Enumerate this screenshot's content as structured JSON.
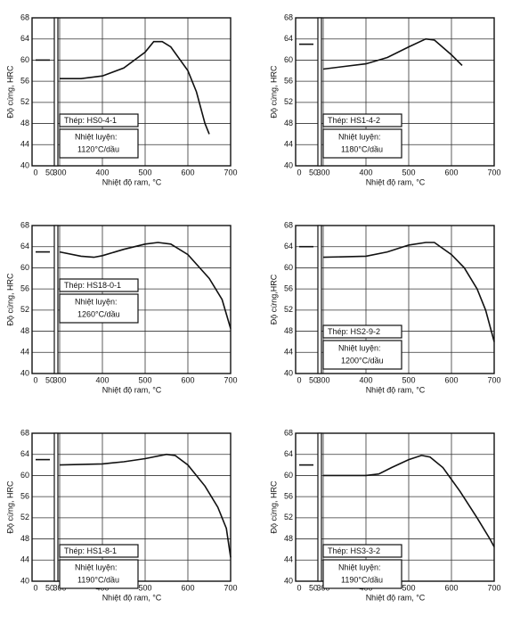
{
  "chart_data": [
    {
      "type": "line",
      "ylabel": "Độ cứng, HRC",
      "xlabel": "Nhiệt độ ram, °C",
      "annotations": [
        "Thép: HS0-4-1",
        "Nhiệt luyện:",
        "1120°C/dầu"
      ],
      "ylim": [
        40,
        68
      ],
      "yticks": [
        40,
        44,
        48,
        52,
        56,
        60,
        64,
        68
      ],
      "xlim": [
        0,
        700
      ],
      "xbreak": [
        50,
        300
      ],
      "xticks": [
        0,
        50,
        300,
        400,
        500,
        600,
        700
      ],
      "grid": true,
      "series": [
        {
          "color": "#111111",
          "x": [
            0,
            50
          ],
          "values": [
            60,
            60
          ]
        },
        {
          "color": "#111111",
          "x": [
            300,
            350,
            400,
            450,
            500,
            520,
            540,
            560,
            600,
            620,
            640,
            650
          ],
          "values": [
            56.5,
            56.5,
            57,
            58.5,
            61.5,
            63.5,
            63.5,
            62.5,
            58,
            54,
            48,
            46
          ]
        }
      ]
    },
    {
      "type": "line",
      "ylabel": "Độ cứng, HRC",
      "xlabel": "Nhiệt độ ram, °C",
      "annotations": [
        "Thép: HS1-4-2",
        "Nhiệt luyện:",
        "1180°C/dầu"
      ],
      "ylim": [
        40,
        68
      ],
      "yticks": [
        40,
        44,
        48,
        52,
        56,
        60,
        64,
        68
      ],
      "xlim": [
        0,
        700
      ],
      "xbreak": [
        50,
        300
      ],
      "xticks": [
        0,
        50,
        300,
        400,
        500,
        600,
        700
      ],
      "grid": true,
      "series": [
        {
          "color": "#111111",
          "x": [
            0,
            50
          ],
          "values": [
            63,
            63
          ]
        },
        {
          "color": "#111111",
          "x": [
            300,
            350,
            400,
            450,
            500,
            540,
            560,
            600,
            625
          ],
          "values": [
            58.3,
            58.8,
            59.3,
            60.5,
            62.5,
            64,
            63.8,
            61,
            59
          ]
        }
      ]
    },
    {
      "type": "line",
      "ylabel": "Độ cứng, HRC",
      "xlabel": "Nhiệt độ ram, °C",
      "annotations": [
        "Thép: HS18-0-1",
        "Nhiệt luyện:",
        "1260°C/dầu"
      ],
      "ylim": [
        40,
        68
      ],
      "yticks": [
        40,
        44,
        48,
        52,
        56,
        60,
        64,
        68
      ],
      "xlim": [
        0,
        700
      ],
      "xbreak": [
        50,
        300
      ],
      "xticks": [
        0,
        50,
        300,
        400,
        500,
        600,
        700
      ],
      "grid": true,
      "series": [
        {
          "color": "#111111",
          "x": [
            0,
            50
          ],
          "values": [
            63,
            63
          ]
        },
        {
          "color": "#111111",
          "x": [
            300,
            350,
            380,
            400,
            450,
            500,
            530,
            560,
            600,
            650,
            680,
            700
          ],
          "values": [
            63,
            62.2,
            62,
            62.3,
            63.5,
            64.5,
            64.8,
            64.5,
            62.5,
            58,
            54,
            48.5
          ]
        }
      ]
    },
    {
      "type": "line",
      "ylabel": "Độ cứng,HRC",
      "xlabel": "Nhiệt độ ram, °C",
      "annotations": [
        "Thép: HS2-9-2",
        "Nhiệt luyện:",
        "1200°C/dầu"
      ],
      "ylim": [
        40,
        68
      ],
      "yticks": [
        40,
        44,
        48,
        52,
        56,
        60,
        64,
        68
      ],
      "xlim": [
        0,
        700
      ],
      "xbreak": [
        50,
        300
      ],
      "xticks": [
        0,
        50,
        300,
        400,
        500,
        600,
        700
      ],
      "grid": true,
      "series": [
        {
          "color": "#111111",
          "x": [
            0,
            50
          ],
          "values": [
            64,
            64
          ]
        },
        {
          "color": "#111111",
          "x": [
            300,
            400,
            450,
            500,
            540,
            560,
            600,
            630,
            660,
            680,
            700
          ],
          "values": [
            62,
            62.2,
            63,
            64.3,
            64.8,
            64.8,
            62.5,
            60,
            56,
            52,
            46
          ]
        }
      ]
    },
    {
      "type": "line",
      "ylabel": "Độ cứng, HRC",
      "xlabel": "Nhiệt độ ram, °C",
      "annotations": [
        "Thép: HS1-8-1",
        "Nhiệt luyện:",
        "1190°C/dầu"
      ],
      "ylim": [
        40,
        68
      ],
      "yticks": [
        40,
        44,
        48,
        52,
        56,
        60,
        64,
        68
      ],
      "xlim": [
        0,
        700
      ],
      "xbreak": [
        50,
        300
      ],
      "xticks": [
        0,
        50,
        300,
        400,
        500,
        600,
        700
      ],
      "grid": true,
      "series": [
        {
          "color": "#111111",
          "x": [
            0,
            50
          ],
          "values": [
            63,
            63
          ]
        },
        {
          "color": "#111111",
          "x": [
            300,
            400,
            450,
            500,
            550,
            570,
            600,
            640,
            670,
            690,
            700
          ],
          "values": [
            62,
            62.2,
            62.6,
            63.2,
            64,
            63.8,
            62,
            58,
            54,
            50,
            44.5
          ]
        }
      ]
    },
    {
      "type": "line",
      "ylabel": "Độ cứng, HRC",
      "xlabel": "Nhiệt độ ram, °C",
      "annotations": [
        "Thép: HS3-3-2",
        "Nhiệt luyện:",
        "1190°C/dầu"
      ],
      "ylim": [
        40,
        68
      ],
      "yticks": [
        40,
        44,
        48,
        52,
        56,
        60,
        64,
        68
      ],
      "xlim": [
        0,
        700
      ],
      "xbreak": [
        50,
        300
      ],
      "xticks": [
        0,
        50,
        300,
        400,
        500,
        600,
        700
      ],
      "grid": true,
      "series": [
        {
          "color": "#111111",
          "x": [
            0,
            50
          ],
          "values": [
            62,
            62
          ]
        },
        {
          "color": "#111111",
          "x": [
            300,
            400,
            430,
            460,
            500,
            530,
            550,
            580,
            620,
            660,
            690,
            700
          ],
          "values": [
            60,
            60,
            60.3,
            61.5,
            63,
            63.8,
            63.5,
            61.5,
            57,
            52,
            48,
            46.5
          ]
        }
      ]
    }
  ]
}
